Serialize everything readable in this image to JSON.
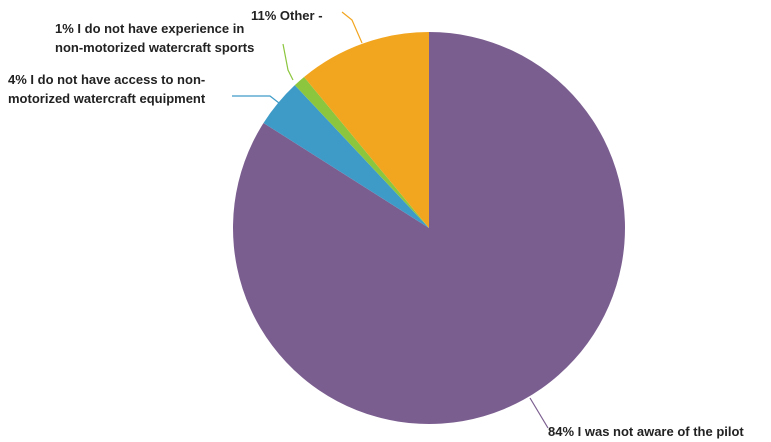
{
  "chart_data": {
    "type": "pie",
    "start_angle_deg": 0,
    "direction": "clockwise",
    "slices": [
      {
        "label_lines": [
          "84% I was not aware of the pilot"
        ],
        "value": 84,
        "color": "#7b5e90"
      },
      {
        "label_lines": [
          "4% I do not have access to non-",
          "motorized watercraft equipment"
        ],
        "value": 4,
        "color": "#3e9bc8"
      },
      {
        "label_lines": [
          "1% I do not have experience in",
          "non-motorized watercraft sports"
        ],
        "value": 1,
        "color": "#8cc63e"
      },
      {
        "label_lines": [
          "11% Other -"
        ],
        "value": 11,
        "color": "#f2a51f"
      }
    ]
  }
}
